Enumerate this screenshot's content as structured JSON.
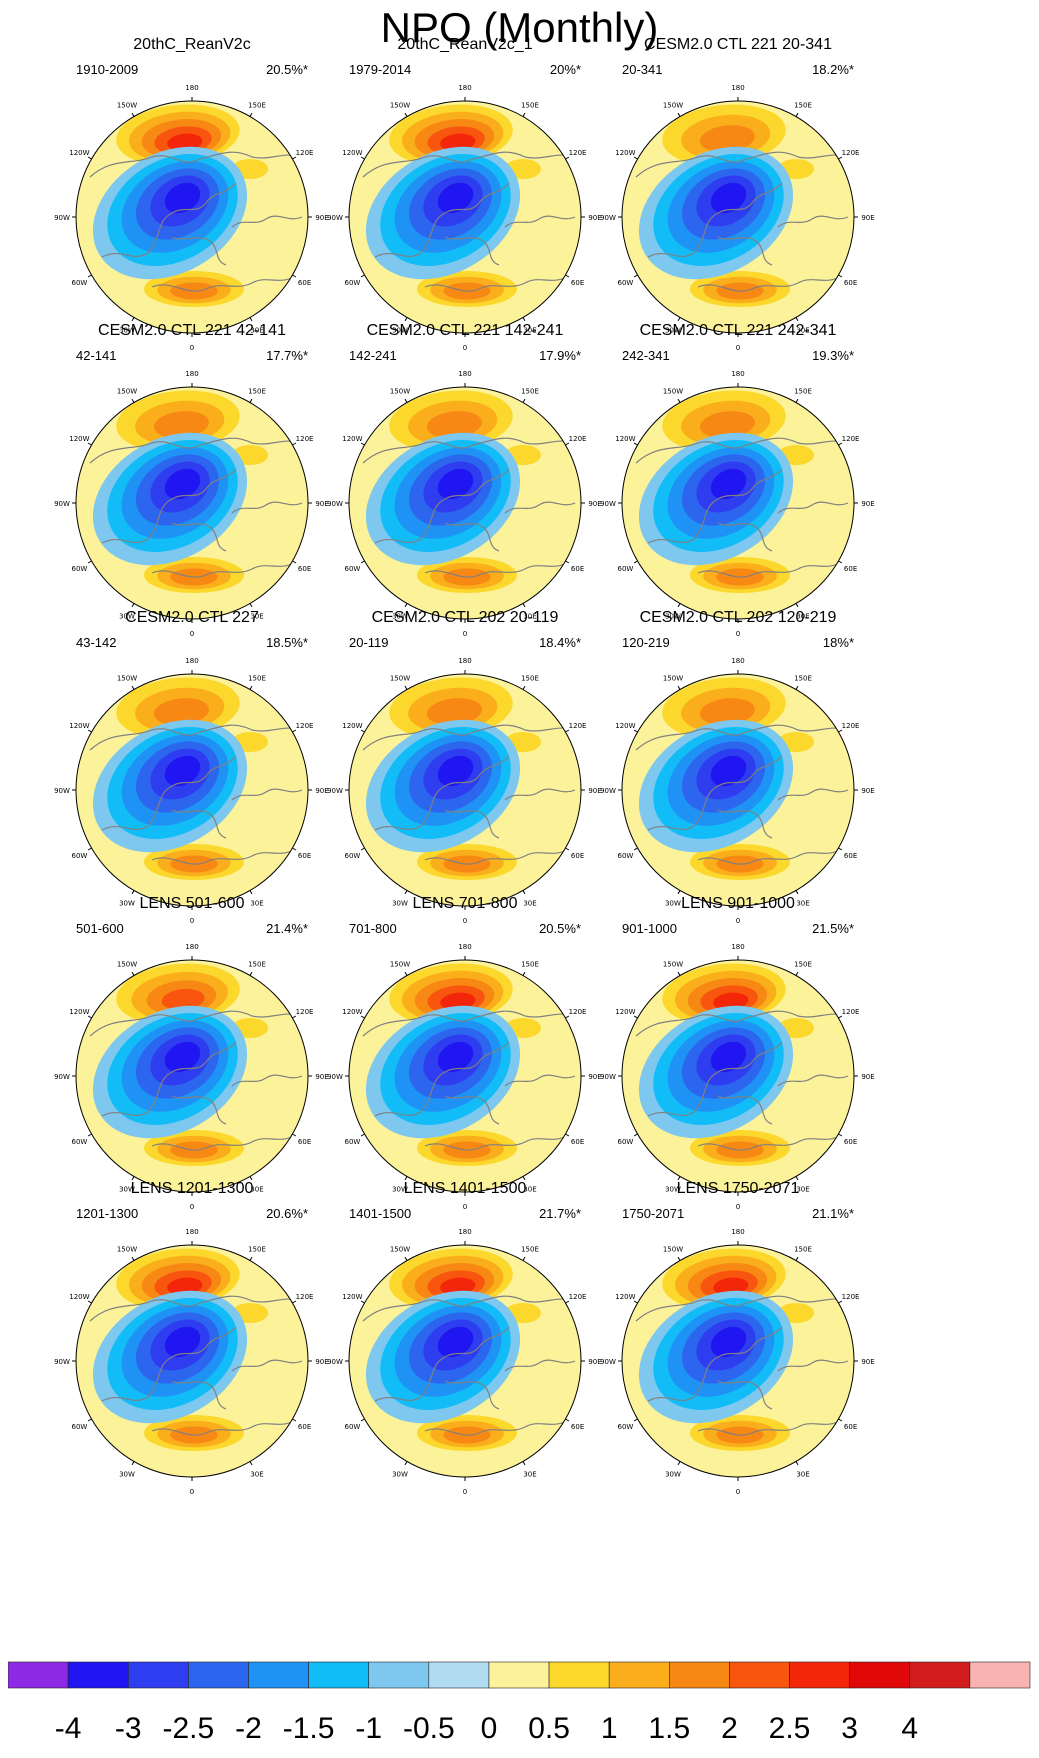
{
  "title": "NPO (Monthly)",
  "chart_data": {
    "type": "polar-contour-map-grid",
    "rows": 5,
    "columns": 3,
    "panels": [
      {
        "title": "20thC_ReanV2c",
        "period": "1910-2009",
        "variance": "20.5%*",
        "peak_pos": 2.6,
        "peak_neg": -3.2
      },
      {
        "title": "20thC_ReanV2c_1",
        "period": "1979-2014",
        "variance": "20%*",
        "peak_pos": 2.8,
        "peak_neg": -3.1
      },
      {
        "title": "CESM2.0 CTL 221 20-341",
        "period": "20-341",
        "variance": "18.2%*",
        "peak_pos": 1.9,
        "peak_neg": -3.6
      },
      {
        "title": "CESM2.0 CTL 221 42-141",
        "period": "42-141",
        "variance": "17.7%*",
        "peak_pos": 1.8,
        "peak_neg": -3.6
      },
      {
        "title": "CESM2.0 CTL 221 142-241",
        "period": "142-241",
        "variance": "17.9%*",
        "peak_pos": 1.9,
        "peak_neg": -3.5
      },
      {
        "title": "CESM2.0 CTL 221 242-341",
        "period": "242-341",
        "variance": "19.3%*",
        "peak_pos": 1.9,
        "peak_neg": -3.6
      },
      {
        "title": "CESM2.0 CTL 227",
        "period": "43-142",
        "variance": "18.5%*",
        "peak_pos": 1.8,
        "peak_neg": -3.7
      },
      {
        "title": "CESM2.0 CTL 202 20-119",
        "period": "20-119",
        "variance": "18.4%*",
        "peak_pos": 1.9,
        "peak_neg": -3.6
      },
      {
        "title": "CESM2.0 CTL 202 120-219",
        "period": "120-219",
        "variance": "18%*",
        "peak_pos": 1.8,
        "peak_neg": -3.5
      },
      {
        "title": "LENS 501-600",
        "period": "501-600",
        "variance": "21.4%*",
        "peak_pos": 2.3,
        "peak_neg": -3.7
      },
      {
        "title": "LENS 701-800",
        "period": "701-800",
        "variance": "20.5%*",
        "peak_pos": 2.6,
        "peak_neg": -3.6
      },
      {
        "title": "LENS 901-1000",
        "period": "901-1000",
        "variance": "21.5%*",
        "peak_pos": 2.8,
        "peak_neg": -3.6
      },
      {
        "title": "LENS 1201-1300",
        "period": "1201-1300",
        "variance": "20.6%*",
        "peak_pos": 2.6,
        "peak_neg": -3.6
      },
      {
        "title": "LENS 1401-1500",
        "period": "1401-1500",
        "variance": "21.7%*",
        "peak_pos": 2.7,
        "peak_neg": -3.7
      },
      {
        "title": "LENS 1750-2071",
        "period": "1750-2071",
        "variance": "21.1%*",
        "peak_pos": 2.6,
        "peak_neg": -3.6
      }
    ],
    "longitude_labels": [
      "180",
      "150E",
      "120E",
      "90E",
      "60E",
      "30E",
      "0",
      "30W",
      "60W",
      "90W",
      "120W",
      "150W"
    ],
    "colorbar": {
      "labels": [
        "-4",
        "-3",
        "-2.5",
        "-2",
        "-1.5",
        "-1",
        "-0.5",
        "0",
        "0.5",
        "1",
        "1.5",
        "2",
        "2.5",
        "3",
        "4"
      ],
      "levels": [
        -4,
        -3,
        -2.5,
        -2,
        -1.5,
        -1,
        -0.5,
        0,
        0.5,
        1,
        1.5,
        2,
        2.5,
        3,
        4
      ],
      "colors": [
        "#8e2ae6",
        "#1f16f2",
        "#2f3df0",
        "#2c66ee",
        "#1f93f5",
        "#12bdf7",
        "#7ec8f0",
        "#b2dcf2",
        "#fbf29a",
        "#fcd82c",
        "#fbae1c",
        "#f88814",
        "#f8560e",
        "#f4260a",
        "#e00808",
        "#d01c1c",
        "#f9b3b3"
      ]
    }
  }
}
